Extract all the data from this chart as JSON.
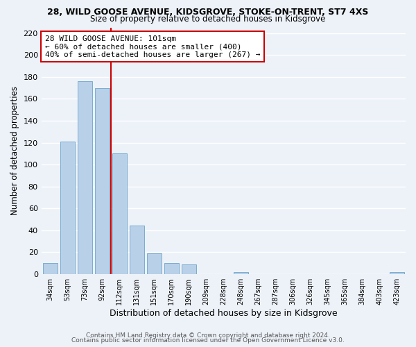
{
  "title1": "28, WILD GOOSE AVENUE, KIDSGROVE, STOKE-ON-TRENT, ST7 4XS",
  "title2": "Size of property relative to detached houses in Kidsgrove",
  "xlabel": "Distribution of detached houses by size in Kidsgrove",
  "ylabel": "Number of detached properties",
  "categories": [
    "34sqm",
    "53sqm",
    "73sqm",
    "92sqm",
    "112sqm",
    "131sqm",
    "151sqm",
    "170sqm",
    "190sqm",
    "209sqm",
    "228sqm",
    "248sqm",
    "267sqm",
    "287sqm",
    "306sqm",
    "326sqm",
    "345sqm",
    "365sqm",
    "384sqm",
    "403sqm",
    "423sqm"
  ],
  "values": [
    10,
    121,
    176,
    170,
    110,
    44,
    19,
    10,
    9,
    0,
    0,
    2,
    0,
    0,
    0,
    0,
    0,
    0,
    0,
    0,
    2
  ],
  "bar_color": "#b8d0e8",
  "bar_edge_color": "#7aadd0",
  "vline_color": "#cc0000",
  "annotation_title": "28 WILD GOOSE AVENUE: 101sqm",
  "annotation_line1": "← 60% of detached houses are smaller (400)",
  "annotation_line2": "40% of semi-detached houses are larger (267) →",
  "annotation_box_color": "#ffffff",
  "annotation_box_edge": "#cc0000",
  "ylim": [
    0,
    225
  ],
  "yticks": [
    0,
    20,
    40,
    60,
    80,
    100,
    120,
    140,
    160,
    180,
    200,
    220
  ],
  "footer1": "Contains HM Land Registry data © Crown copyright and database right 2024.",
  "footer2": "Contains public sector information licensed under the Open Government Licence v3.0.",
  "bg_color": "#edf2f9",
  "grid_color": "#ffffff"
}
